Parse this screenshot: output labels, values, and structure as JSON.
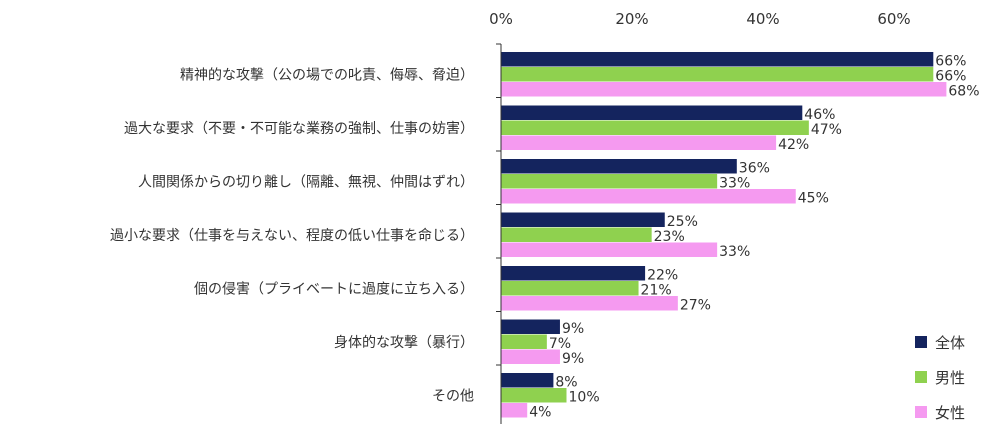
{
  "chart_data": {
    "type": "bar",
    "orientation": "horizontal",
    "categories": [
      "精神的な攻撃（公の場での叱責、侮辱、脅迫）",
      "過大な要求（不要・不可能な業務の強制、仕事の妨害）",
      "人間関係からの切り離し（隔離、無視、仲間はずれ）",
      "過小な要求（仕事を与えない、程度の低い仕事を命じる）",
      "個の侵害（プライベートに過度に立ち入る）",
      "身体的な攻撃（暴行）",
      "その他"
    ],
    "series": [
      {
        "name": "全体",
        "color": "#14245e",
        "values": [
          66,
          46,
          36,
          25,
          22,
          9,
          8
        ]
      },
      {
        "name": "男性",
        "color": "#8fd14f",
        "values": [
          66,
          47,
          33,
          23,
          21,
          7,
          10
        ]
      },
      {
        "name": "女性",
        "color": "#f59af0",
        "values": [
          68,
          42,
          45,
          33,
          27,
          9,
          4
        ]
      }
    ],
    "value_labels": [
      [
        "66%",
        "46%",
        "36%",
        "25%",
        "22%",
        "9%",
        "8%"
      ],
      [
        "66%",
        "47%",
        "33%",
        "23%",
        "21%",
        "7%",
        "10%"
      ],
      [
        "68%",
        "42%",
        "45%",
        "33%",
        "27%",
        "9%",
        "4%"
      ]
    ],
    "x_ticks": [
      0,
      20,
      40,
      60
    ],
    "x_tick_labels": [
      "0%",
      "20%",
      "40%",
      "60%"
    ],
    "xlim": [
      0,
      70
    ],
    "axis_position": "top",
    "grid": false,
    "legend_position": "bottom-right",
    "title": "",
    "xlabel": "",
    "ylabel": ""
  }
}
